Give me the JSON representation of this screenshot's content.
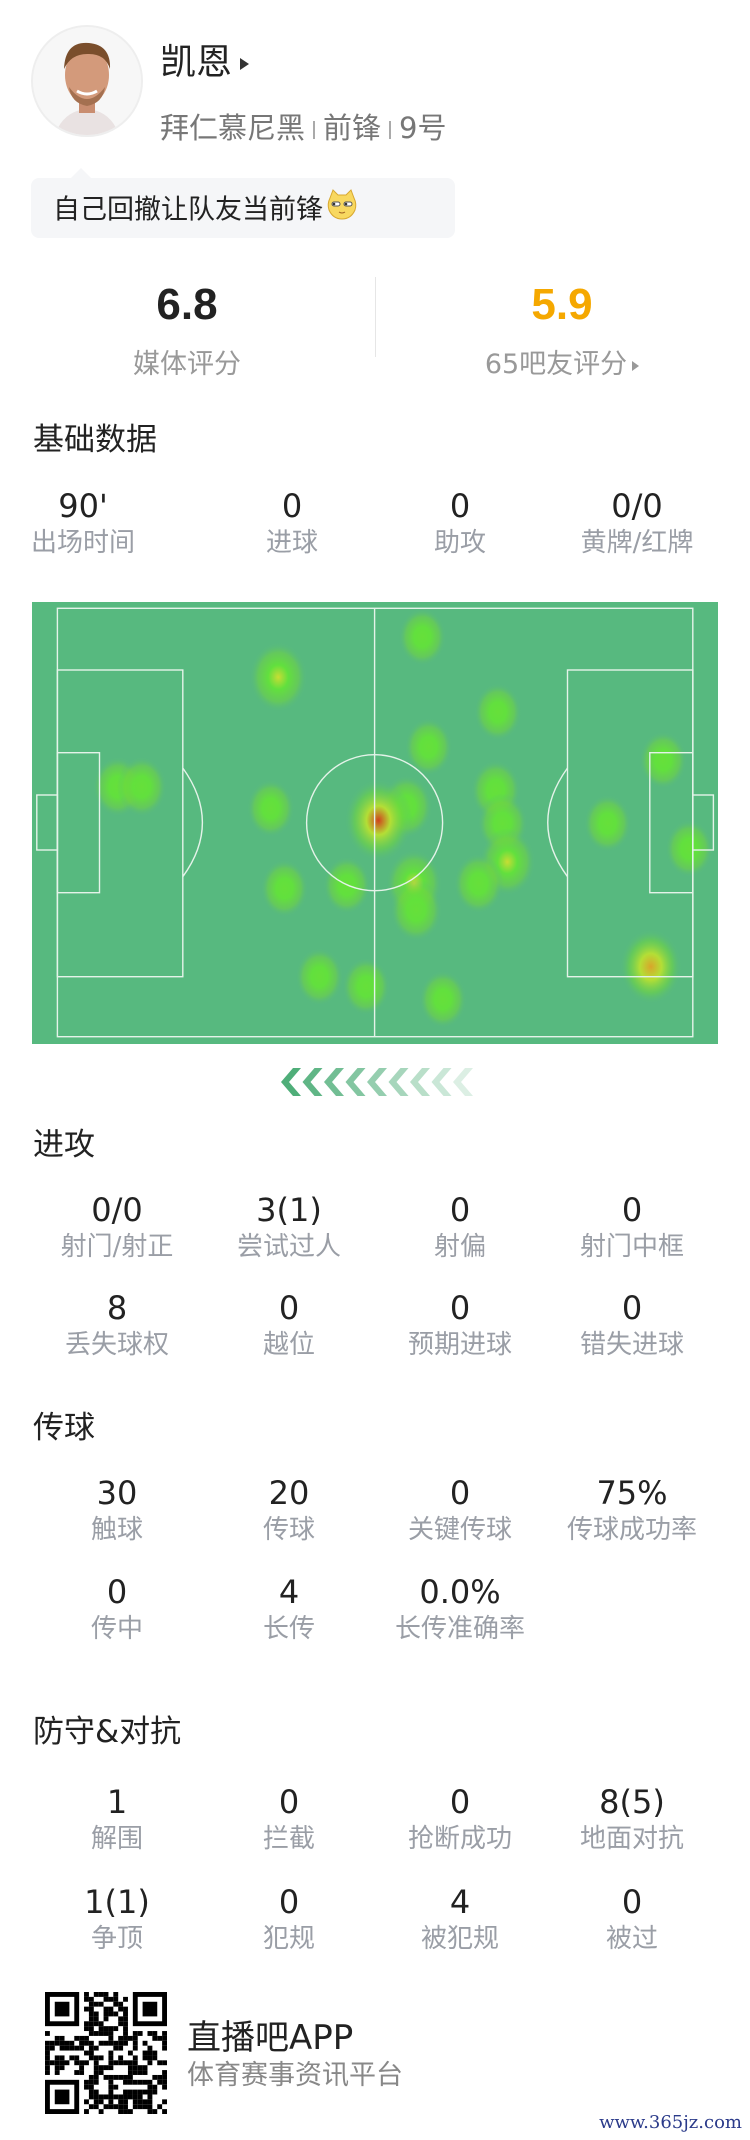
{
  "player": {
    "name": "凯恩",
    "team": "拜仁慕尼黑",
    "position": "前锋",
    "number": "9号",
    "comment": "自己回撤让队友当前锋"
  },
  "ratings": {
    "media": {
      "value": "6.8",
      "label": "媒体评分",
      "color": "#222222"
    },
    "fans": {
      "value": "5.9",
      "label": "65吧友评分",
      "color": "#f5a800"
    }
  },
  "sections": {
    "basic": {
      "title": "基础数据",
      "stats": [
        {
          "value": "90'",
          "label": "出场时间"
        },
        {
          "value": "0",
          "label": "进球"
        },
        {
          "value": "0",
          "label": "助攻"
        },
        {
          "value": "0/0",
          "label": "黄牌/红牌"
        }
      ]
    },
    "attack": {
      "title": "进攻",
      "stats": [
        {
          "value": "0/0",
          "label": "射门/射正"
        },
        {
          "value": "3(1)",
          "label": "尝试过人"
        },
        {
          "value": "0",
          "label": "射偏"
        },
        {
          "value": "0",
          "label": "射门中框"
        },
        {
          "value": "8",
          "label": "丢失球权"
        },
        {
          "value": "0",
          "label": "越位"
        },
        {
          "value": "0",
          "label": "预期进球"
        },
        {
          "value": "0",
          "label": "错失进球"
        }
      ]
    },
    "passing": {
      "title": "传球",
      "stats": [
        {
          "value": "30",
          "label": "触球"
        },
        {
          "value": "20",
          "label": "传球"
        },
        {
          "value": "0",
          "label": "关键传球"
        },
        {
          "value": "75%",
          "label": "传球成功率"
        },
        {
          "value": "0",
          "label": "传中"
        },
        {
          "value": "4",
          "label": "长传"
        },
        {
          "value": "0.0%",
          "label": "长传准确率"
        }
      ]
    },
    "defense": {
      "title": "防守&对抗",
      "stats": [
        {
          "value": "1",
          "label": "解围"
        },
        {
          "value": "0",
          "label": "拦截"
        },
        {
          "value": "0",
          "label": "抢断成功"
        },
        {
          "value": "8(5)",
          "label": "地面对抗"
        },
        {
          "value": "1(1)",
          "label": "争顶"
        },
        {
          "value": "0",
          "label": "犯规"
        },
        {
          "value": "4",
          "label": "被犯规"
        },
        {
          "value": "0",
          "label": "被过"
        }
      ]
    }
  },
  "heatmap": {
    "attack_direction": "left",
    "pitch_color": "#57b97f",
    "points_pct_of_pitch": [
      {
        "x": 56.9,
        "y": 7.9,
        "i": 0.5
      },
      {
        "x": 35.9,
        "y": 17.0,
        "i": 0.75
      },
      {
        "x": 67.9,
        "y": 24.9,
        "i": 0.5
      },
      {
        "x": 57.8,
        "y": 32.8,
        "i": 0.5
      },
      {
        "x": 92.0,
        "y": 35.8,
        "i": 0.5
      },
      {
        "x": 12.5,
        "y": 41.8,
        "i": 0.55
      },
      {
        "x": 16.0,
        "y": 41.8,
        "i": 0.55
      },
      {
        "x": 34.8,
        "y": 46.7,
        "i": 0.5
      },
      {
        "x": 54.6,
        "y": 46.3,
        "i": 0.6
      },
      {
        "x": 50.5,
        "y": 49.4,
        "i": 1.0
      },
      {
        "x": 67.6,
        "y": 42.6,
        "i": 0.55
      },
      {
        "x": 68.6,
        "y": 50.1,
        "i": 0.55
      },
      {
        "x": 69.3,
        "y": 58.8,
        "i": 0.7
      },
      {
        "x": 65.1,
        "y": 63.7,
        "i": 0.55
      },
      {
        "x": 83.9,
        "y": 50.1,
        "i": 0.5
      },
      {
        "x": 95.8,
        "y": 55.8,
        "i": 0.5
      },
      {
        "x": 36.8,
        "y": 64.8,
        "i": 0.5
      },
      {
        "x": 45.9,
        "y": 64.1,
        "i": 0.5
      },
      {
        "x": 55.7,
        "y": 63.7,
        "i": 0.7
      },
      {
        "x": 56.0,
        "y": 69.7,
        "i": 0.6
      },
      {
        "x": 90.2,
        "y": 82.5,
        "i": 0.85
      },
      {
        "x": 41.9,
        "y": 84.8,
        "i": 0.5
      },
      {
        "x": 48.7,
        "y": 87.0,
        "i": 0.5
      },
      {
        "x": 59.9,
        "y": 89.9,
        "i": 0.5
      }
    ]
  },
  "footer": {
    "app_name": "直播吧APP",
    "app_tagline": "体育赛事资讯平台",
    "watermark": "www.365jz.com"
  }
}
